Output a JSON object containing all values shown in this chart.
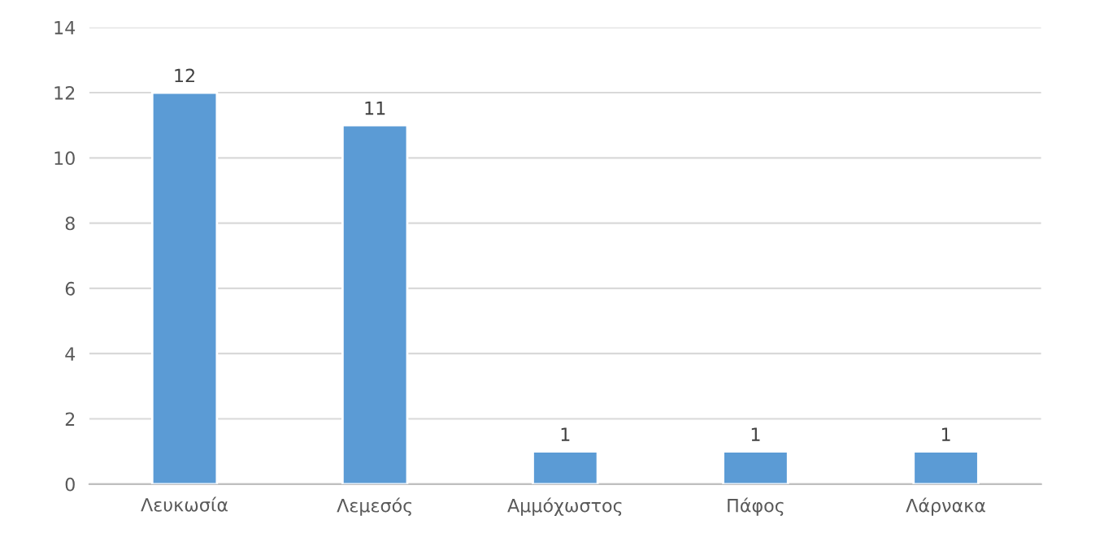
{
  "chart_data": {
    "type": "bar",
    "categories": [
      "Λευκωσία",
      "Λεμεσός",
      "Αμμόχωστος",
      "Πάφος",
      "Λάρνακα"
    ],
    "values": [
      12,
      11,
      1,
      1,
      1
    ],
    "color": "#5b9bd5",
    "ylim": [
      0,
      14
    ],
    "yticks": [
      0,
      2,
      4,
      6,
      8,
      10,
      12,
      14
    ],
    "grid": "y",
    "data_labels": true
  }
}
